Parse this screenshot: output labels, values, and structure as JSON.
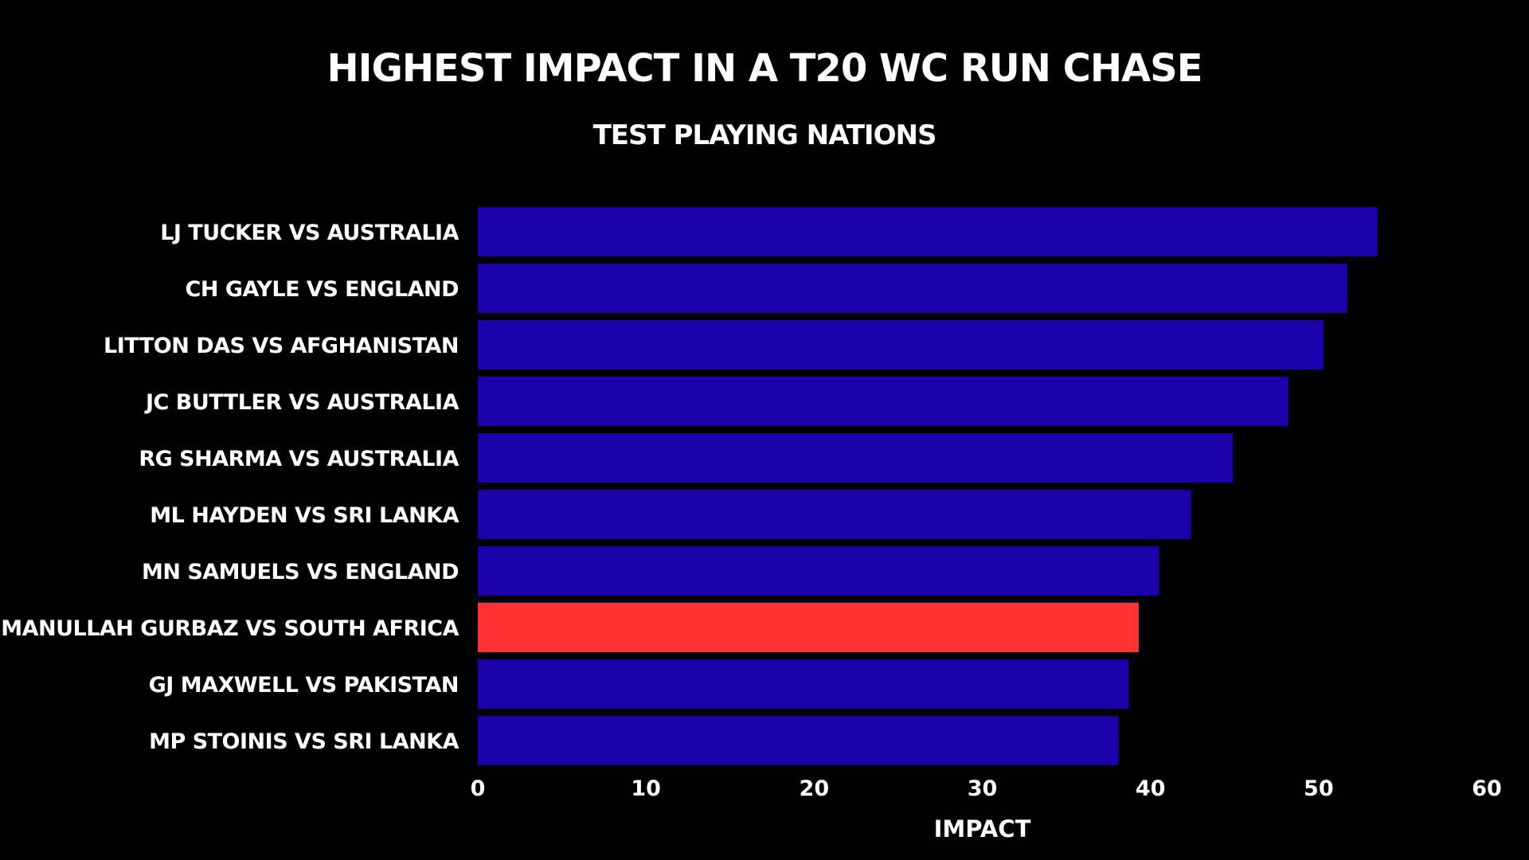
{
  "chart_data": {
    "type": "bar",
    "orientation": "horizontal",
    "title": "HIGHEST IMPACT IN A T20 WC RUN CHASE",
    "subtitle": "TEST PLAYING NATIONS",
    "xlabel": "IMPACT",
    "ylabel": "",
    "xlim": [
      0,
      60
    ],
    "xticks": [
      0,
      10,
      20,
      30,
      40,
      50,
      60
    ],
    "grid": false,
    "legend": "none",
    "categories": [
      "LJ TUCKER VS AUSTRALIA",
      "CH GAYLE VS ENGLAND",
      "LITTON DAS VS AFGHANISTAN",
      "JC BUTTLER VS AUSTRALIA",
      "RG SHARMA VS AUSTRALIA",
      "ML HAYDEN VS SRI LANKA",
      "MN SAMUELS VS ENGLAND",
      "RAHMANULLAH GURBAZ VS SOUTH AFRICA",
      "GJ MAXWELL VS PAKISTAN",
      "MP STOINIS VS SRI LANKA"
    ],
    "values": [
      53.5,
      51.7,
      50.3,
      48.2,
      44.9,
      42.4,
      40.5,
      39.3,
      38.7,
      38.1
    ],
    "highlight_index": 7,
    "colors": {
      "bar": "#1a00a8",
      "highlight": "#ff3333",
      "background": "#000000",
      "text": "#ffffff"
    }
  }
}
